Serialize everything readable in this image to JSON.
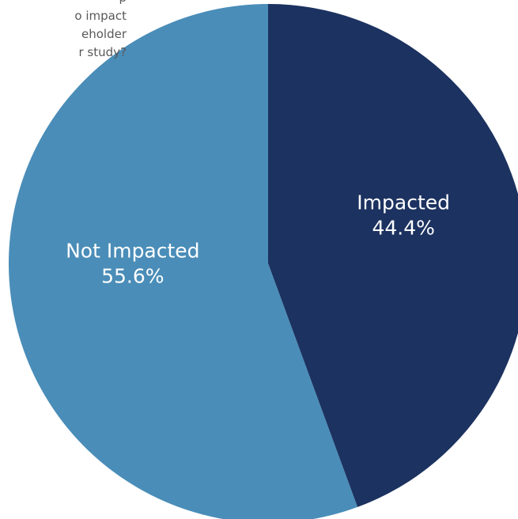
{
  "question": {
    "lines": [
      "p",
      "o impact",
      "eholder",
      "r study?"
    ]
  },
  "chart_data": {
    "type": "pie",
    "categories": [
      "Impacted",
      "Not Impacted"
    ],
    "values": [
      44.4,
      55.6
    ],
    "value_labels": [
      "44.4%",
      "55.6%"
    ],
    "colors": [
      "#1c3260",
      "#4a8db8"
    ],
    "start": "12 o'clock",
    "direction": "clockwise",
    "title": "",
    "legend": "none"
  }
}
